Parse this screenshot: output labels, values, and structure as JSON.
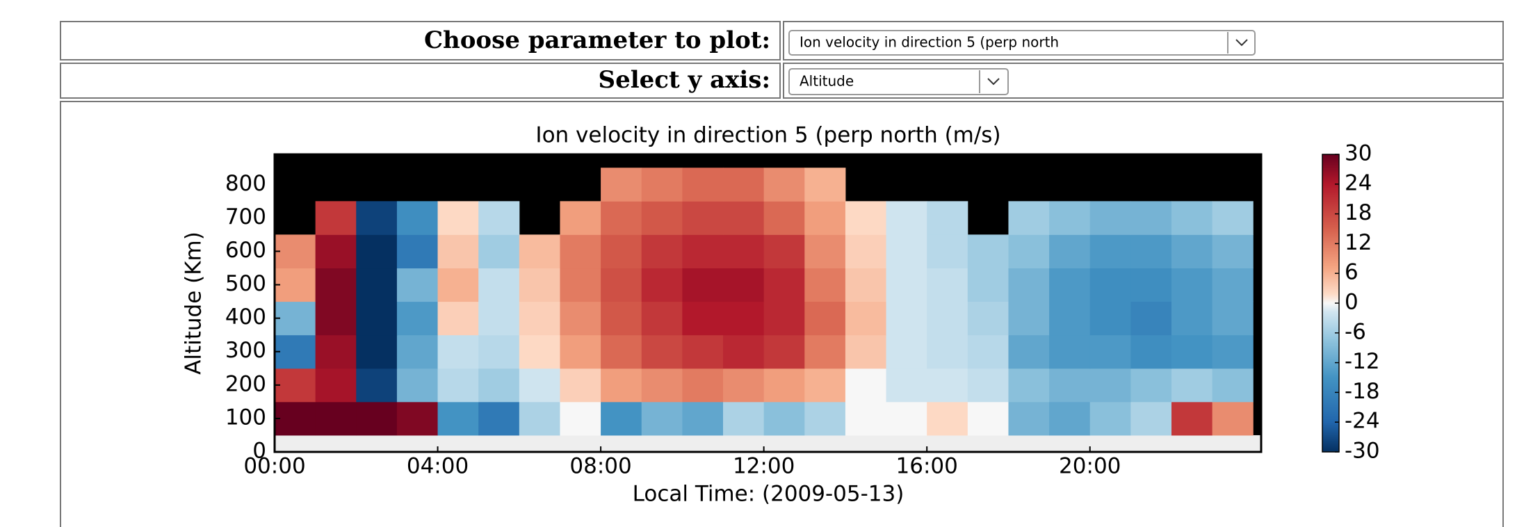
{
  "form": {
    "rows": [
      {
        "label": "Choose parameter to plot:",
        "value": "Ion velocity in direction 5 (perp north"
      },
      {
        "label": "Select y axis:",
        "value": "Altitude"
      }
    ]
  },
  "chart_data": {
    "type": "heatmap",
    "title": "Ion velocity in direction 5 (perp north (m/s)",
    "xlabel": "Local Time: (2009-05-13)",
    "ylabel": "Altitude (Km)",
    "x_edges": [
      0,
      1,
      2,
      3,
      4,
      5,
      6,
      7,
      8,
      9,
      10,
      11,
      12,
      13,
      14,
      15,
      16,
      17,
      18,
      19,
      20,
      21,
      22,
      23,
      24
    ],
    "y_edges": [
      50,
      150,
      250,
      350,
      450,
      550,
      650,
      750,
      850
    ],
    "z": [
      [
        30,
        30,
        30,
        28,
        -15,
        -20,
        -5,
        0,
        -15,
        -10,
        -12,
        -5,
        -8,
        -5,
        0,
        0,
        2,
        0,
        -10,
        -12,
        -8,
        -5,
        20,
        10
      ],
      [
        20,
        25,
        -28,
        -10,
        -4,
        -6,
        -2,
        3,
        8,
        10,
        12,
        10,
        8,
        6,
        0,
        -2,
        -2,
        -3,
        -8,
        -10,
        -10,
        -8,
        -6,
        -8
      ],
      [
        -20,
        26,
        -30,
        -12,
        -3,
        -4,
        2,
        8,
        14,
        18,
        20,
        22,
        20,
        12,
        4,
        -2,
        -3,
        -4,
        -12,
        -14,
        -14,
        -16,
        -15,
        -14
      ],
      [
        -10,
        28,
        -30,
        -14,
        3,
        -3,
        3,
        10,
        16,
        20,
        24,
        24,
        22,
        14,
        5,
        -2,
        -3,
        -5,
        -10,
        -14,
        -16,
        -18,
        -14,
        -12
      ],
      [
        8,
        28,
        -30,
        -10,
        6,
        -3,
        4,
        12,
        17,
        22,
        25,
        25,
        22,
        12,
        4,
        -2,
        -3,
        -6,
        -10,
        -14,
        -16,
        -16,
        -14,
        -12
      ],
      [
        10,
        26,
        -30,
        -20,
        4,
        -6,
        5,
        12,
        16,
        20,
        22,
        22,
        20,
        10,
        3,
        -2,
        -4,
        -6,
        -8,
        -12,
        -14,
        -14,
        -12,
        -10
      ],
      [
        null,
        20,
        -28,
        -16,
        2,
        -4,
        null,
        8,
        14,
        16,
        18,
        18,
        14,
        8,
        2,
        -2,
        -4,
        null,
        -6,
        -8,
        -10,
        -10,
        -8,
        -6
      ],
      [
        null,
        null,
        null,
        null,
        null,
        null,
        null,
        null,
        10,
        12,
        14,
        14,
        10,
        6,
        null,
        null,
        null,
        null,
        null,
        null,
        null,
        null,
        null,
        null
      ]
    ],
    "xlim": [
      0,
      24.2
    ],
    "xticks": [
      {
        "value": 0,
        "label": "00:00"
      },
      {
        "value": 4,
        "label": "04:00"
      },
      {
        "value": 8,
        "label": "08:00"
      },
      {
        "value": 12,
        "label": "12:00"
      },
      {
        "value": 16,
        "label": "16:00"
      },
      {
        "value": 20,
        "label": "20:00"
      }
    ],
    "ylim": [
      0,
      890
    ],
    "yticks": [
      0,
      100,
      200,
      300,
      400,
      500,
      600,
      700,
      800
    ],
    "colormap": "RdBu_r",
    "zlim": [
      -30,
      30
    ],
    "zticks": [
      30,
      24,
      18,
      12,
      6,
      0,
      -6,
      -12,
      -18,
      -24,
      -30
    ]
  }
}
